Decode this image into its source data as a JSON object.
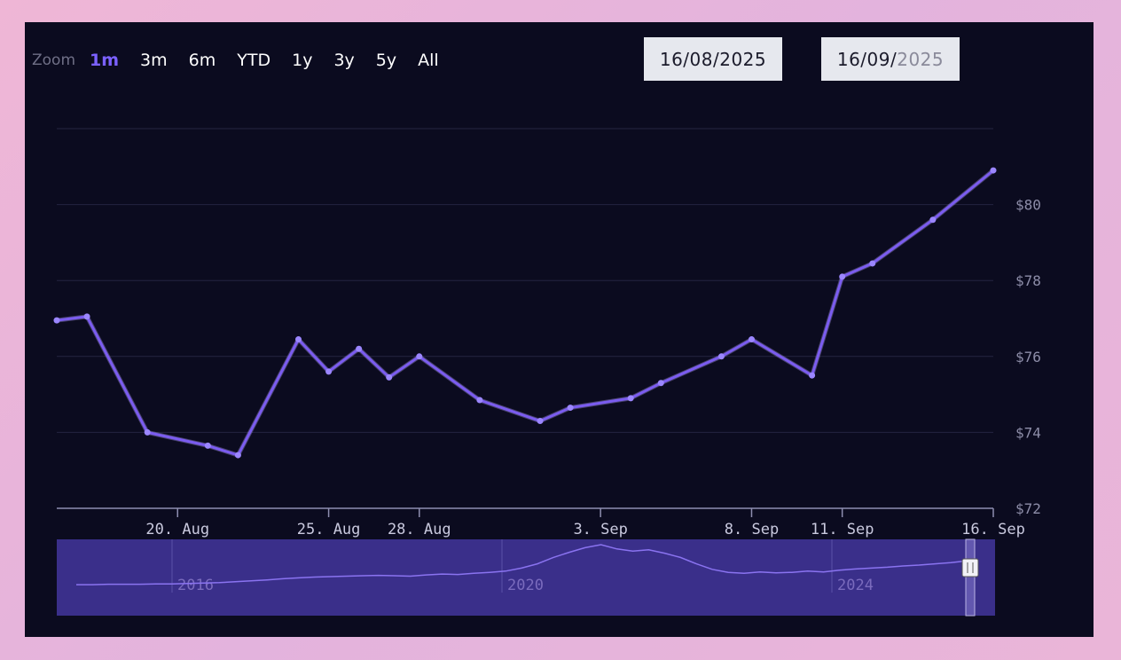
{
  "zoom": {
    "label": "Zoom",
    "buttons": [
      "1m",
      "3m",
      "6m",
      "YTD",
      "1y",
      "3y",
      "5y",
      "All"
    ],
    "active": "1m"
  },
  "range": {
    "from": "16/08/2025",
    "to_main": "16/09/",
    "to_dim": "2025"
  },
  "colors": {
    "background": "#0b0b1f",
    "line": "#7b5cf0",
    "line_highlight": "#b8a6ff",
    "grid": "#242440",
    "navigator_bg": "#3a2f8a",
    "page_gradient": "#efb6d6"
  },
  "chart_data": {
    "type": "line",
    "title": "",
    "xlabel": "",
    "ylabel": "",
    "ylim": [
      72,
      82
    ],
    "y_ticks": [
      "$72",
      "$74",
      "$76",
      "$78",
      "$80"
    ],
    "x_tick_labels": [
      "20. Aug",
      "25. Aug",
      "28. Aug",
      "3. Sep",
      "8. Sep",
      "11. Sep",
      "16. Sep"
    ],
    "x_tick_days": [
      4,
      9,
      12,
      18,
      23,
      26,
      31
    ],
    "grid": true,
    "legend": "none",
    "x_days_from_aug16": [
      0,
      1,
      3,
      5,
      6,
      8,
      9,
      10,
      11,
      12,
      14,
      16,
      17,
      19,
      20,
      22,
      23,
      25,
      26,
      27,
      29,
      31
    ],
    "x": [
      "16 Aug",
      "17 Aug",
      "19 Aug",
      "21 Aug",
      "22 Aug",
      "24 Aug",
      "25 Aug",
      "26 Aug",
      "27 Aug",
      "28 Aug",
      "30 Aug",
      "1 Sep",
      "2 Sep",
      "4 Sep",
      "5 Sep",
      "7 Sep",
      "8 Sep",
      "10 Sep",
      "11 Sep",
      "12 Sep",
      "14 Sep",
      "16 Sep"
    ],
    "series": [
      {
        "values": [
          76.95,
          77.05,
          74.0,
          73.65,
          73.4,
          76.45,
          75.6,
          76.2,
          75.45,
          76.0,
          74.85,
          74.3,
          74.65,
          74.9,
          75.3,
          76.0,
          76.45,
          75.5,
          78.1,
          78.45,
          79.6,
          80.9
        ]
      }
    ],
    "navigator": {
      "x_labels": [
        "2016",
        "2020",
        "2024"
      ],
      "values": [
        0.06,
        0.06,
        0.07,
        0.07,
        0.07,
        0.08,
        0.08,
        0.09,
        0.1,
        0.11,
        0.13,
        0.15,
        0.17,
        0.2,
        0.22,
        0.24,
        0.25,
        0.26,
        0.27,
        0.28,
        0.27,
        0.26,
        0.29,
        0.31,
        0.3,
        0.33,
        0.35,
        0.38,
        0.45,
        0.55,
        0.7,
        0.82,
        0.93,
        1.0,
        0.9,
        0.85,
        0.88,
        0.8,
        0.7,
        0.55,
        0.42,
        0.35,
        0.33,
        0.36,
        0.34,
        0.35,
        0.38,
        0.36,
        0.4,
        0.43,
        0.45,
        0.47,
        0.5,
        0.52,
        0.55,
        0.58,
        0.62
      ],
      "window": "last 1m"
    }
  }
}
